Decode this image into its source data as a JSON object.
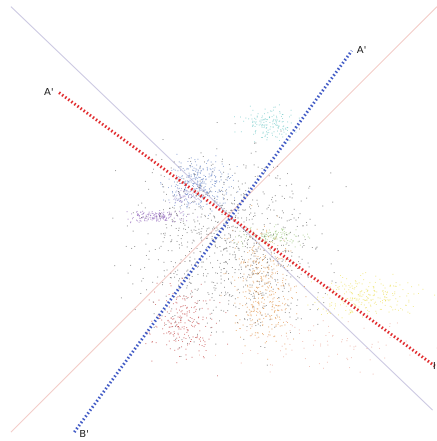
{
  "chart_data": {
    "type": "scatter",
    "title": "",
    "xlabel": "",
    "ylabel": "",
    "grid": false,
    "legend": "none",
    "xlim": [
      -1,
      1
    ],
    "ylim": [
      -1,
      1
    ],
    "background_lines": [
      {
        "from": [
          -0.95,
          0.97
        ],
        "to": [
          0.98,
          -0.86
        ],
        "color": "#c9c6e0"
      },
      {
        "from": [
          -0.95,
          -0.96
        ],
        "to": [
          1.0,
          0.97
        ],
        "color": "#f2c9c4"
      }
    ],
    "projection_axes": [
      {
        "id": "A",
        "color": "#e0272a",
        "from": [
          -0.73,
          0.58
        ],
        "to": [
          0.99,
          -0.66
        ],
        "start_label": "A'",
        "end_label": "I"
      },
      {
        "id": "B",
        "color": "#3c56c4",
        "from": [
          -0.66,
          -0.96
        ],
        "to": [
          0.61,
          0.77
        ],
        "start_label": "B'",
        "end_label": "A'"
      }
    ],
    "center": [
      0.0,
      0.02
    ],
    "clusters": [
      {
        "color": "#6bc7c6",
        "center": [
          0.23,
          0.44
        ],
        "spread": [
          0.06,
          0.035
        ],
        "count": 150
      },
      {
        "color": "#5b7bc0",
        "center": [
          -0.09,
          0.16
        ],
        "spread": [
          0.07,
          0.055
        ],
        "count": 340
      },
      {
        "color": "#9a86c8",
        "center": [
          -0.15,
          0.11
        ],
        "spread": [
          0.03,
          0.02
        ],
        "count": 60
      },
      {
        "color": "#8a5bb5",
        "center": [
          -0.28,
          0.02
        ],
        "spread": [
          0.07,
          0.014
        ],
        "count": 150
      },
      {
        "color": "#9cc77d",
        "center": [
          0.25,
          -0.07
        ],
        "spread": [
          0.08,
          0.018
        ],
        "count": 130
      },
      {
        "color": "#dc8a3a",
        "center": [
          0.2,
          -0.3
        ],
        "spread": [
          0.07,
          0.13
        ],
        "count": 380
      },
      {
        "color": "#ecdf55",
        "center": [
          0.67,
          -0.34
        ],
        "spread": [
          0.12,
          0.045
        ],
        "count": 240
      },
      {
        "color": "#bf3a3a",
        "center": [
          -0.17,
          -0.46
        ],
        "spread": [
          0.07,
          0.08
        ],
        "count": 220
      },
      {
        "color": "#555555",
        "center": [
          0.05,
          -0.1
        ],
        "spread": [
          0.2,
          0.2
        ],
        "count": 900
      },
      {
        "color": "#e8a090",
        "center": [
          0.45,
          -0.55
        ],
        "spread": [
          0.2,
          0.06
        ],
        "count": 90
      }
    ]
  }
}
